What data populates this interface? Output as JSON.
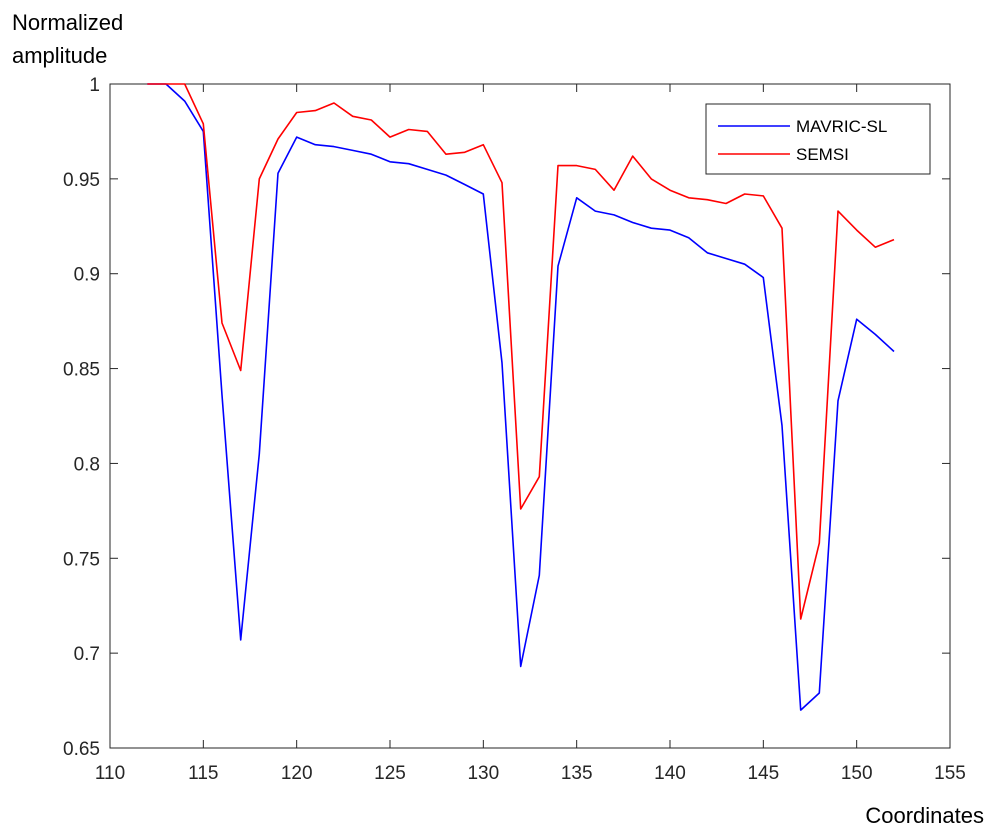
{
  "chart_data": {
    "type": "line",
    "ylabel_line1": "Normalized",
    "ylabel_line2": "amplitude",
    "xlabel": "Coordinates",
    "xlim": [
      110,
      155
    ],
    "ylim": [
      0.65,
      1.0
    ],
    "xticks": [
      110,
      115,
      120,
      125,
      130,
      135,
      140,
      145,
      150,
      155
    ],
    "yticks": [
      0.65,
      0.7,
      0.75,
      0.8,
      0.85,
      0.9,
      0.95,
      1
    ],
    "ytick_labels": [
      "0.65",
      "0.7",
      "0.75",
      "0.8",
      "0.85",
      "0.9",
      "0.95",
      "1"
    ],
    "legend_position": "top-right",
    "grid": false,
    "series": [
      {
        "name": "MAVRIC-SL",
        "color": "#0000ff",
        "x": [
          112,
          113,
          114,
          115,
          116,
          117,
          118,
          119,
          120,
          121,
          122,
          123,
          124,
          125,
          126,
          127,
          128,
          129,
          130,
          131,
          132,
          133,
          134,
          135,
          136,
          137,
          138,
          139,
          140,
          141,
          142,
          143,
          144,
          145,
          146,
          147,
          148,
          149,
          150,
          151,
          152
        ],
        "y": [
          1.0,
          1.0,
          0.991,
          0.975,
          0.836,
          0.707,
          0.805,
          0.953,
          0.972,
          0.968,
          0.967,
          0.965,
          0.963,
          0.959,
          0.958,
          0.955,
          0.952,
          0.947,
          0.942,
          0.853,
          0.693,
          0.741,
          0.904,
          0.94,
          0.933,
          0.931,
          0.927,
          0.924,
          0.923,
          0.919,
          0.911,
          0.908,
          0.905,
          0.898,
          0.82,
          0.67,
          0.679,
          0.833,
          0.876,
          0.868,
          0.859
        ]
      },
      {
        "name": "SEMSI",
        "color": "#ff0000",
        "x": [
          112,
          113,
          114,
          115,
          116,
          117,
          118,
          119,
          120,
          121,
          122,
          123,
          124,
          125,
          126,
          127,
          128,
          129,
          130,
          131,
          132,
          133,
          134,
          135,
          136,
          137,
          138,
          139,
          140,
          141,
          142,
          143,
          144,
          145,
          146,
          147,
          148,
          149,
          150,
          151,
          152
        ],
        "y": [
          1.0,
          1.0,
          1.0,
          0.979,
          0.874,
          0.849,
          0.95,
          0.971,
          0.985,
          0.986,
          0.99,
          0.983,
          0.981,
          0.972,
          0.976,
          0.975,
          0.963,
          0.964,
          0.968,
          0.948,
          0.776,
          0.793,
          0.957,
          0.957,
          0.955,
          0.944,
          0.962,
          0.95,
          0.944,
          0.94,
          0.939,
          0.937,
          0.942,
          0.941,
          0.924,
          0.718,
          0.758,
          0.933,
          0.923,
          0.914,
          0.918
        ]
      }
    ]
  }
}
